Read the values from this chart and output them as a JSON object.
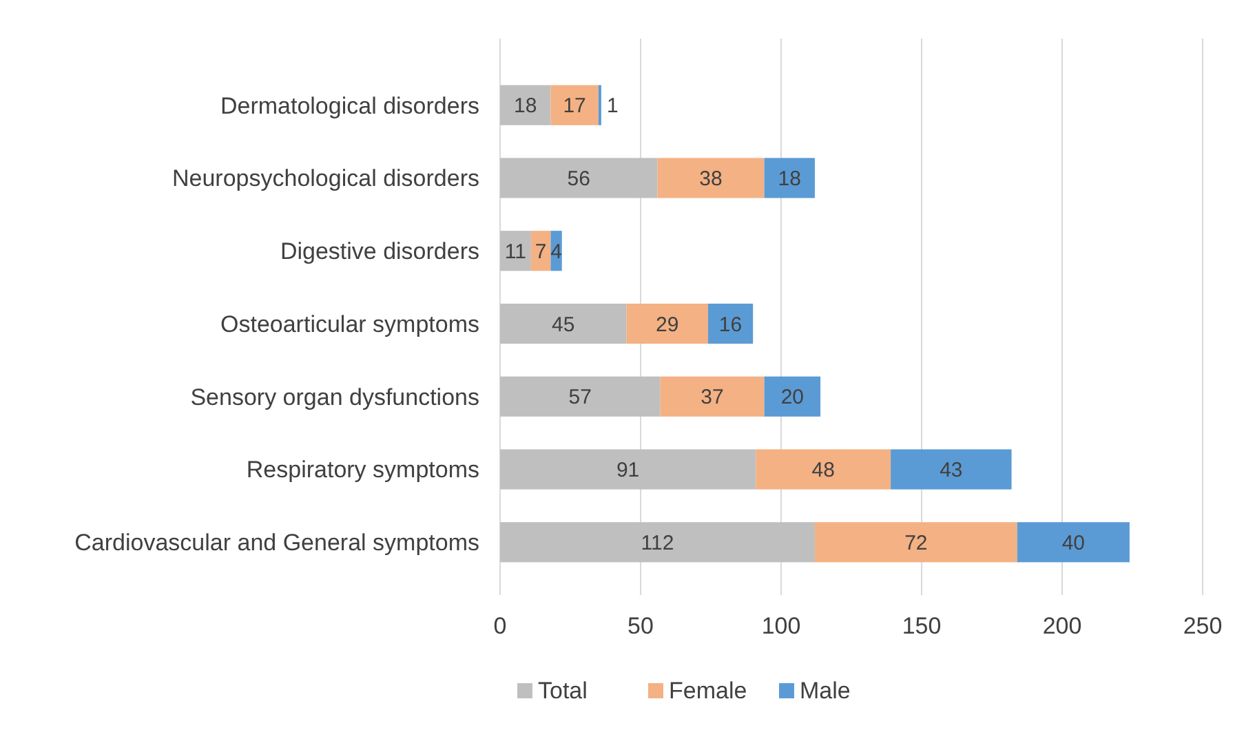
{
  "chart_data": {
    "type": "bar",
    "orientation": "horizontal",
    "stacked": true,
    "categories": [
      "Dermatological disorders",
      "Neuropsychological disorders",
      "Digestive disorders",
      "Osteoarticular symptoms",
      "Sensory organ dysfunctions",
      "Respiratory symptoms",
      "Cardiovascular and General symptoms"
    ],
    "series": [
      {
        "name": "Total",
        "color": "#bfbfbf",
        "values": [
          18,
          56,
          11,
          45,
          57,
          91,
          112
        ]
      },
      {
        "name": "Female",
        "color": "#f4b183",
        "values": [
          17,
          38,
          7,
          29,
          37,
          48,
          72
        ]
      },
      {
        "name": "Male",
        "color": "#5b9bd5",
        "values": [
          1,
          18,
          4,
          16,
          20,
          43,
          40
        ]
      }
    ],
    "xlim": [
      0,
      250
    ],
    "xticks": [
      0,
      50,
      100,
      150,
      200,
      250
    ],
    "grid": "x",
    "legend": "bottom",
    "data_labels": true
  }
}
